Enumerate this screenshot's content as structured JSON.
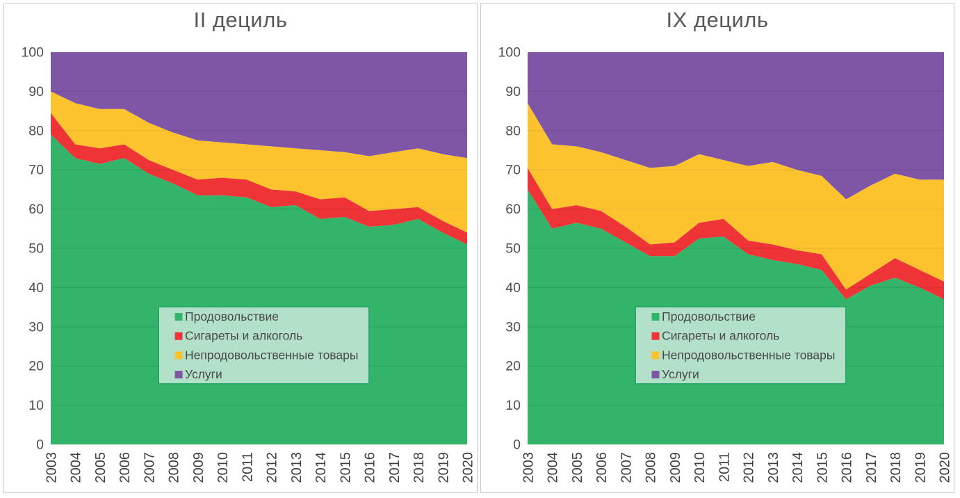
{
  "theme": {
    "background": "#ffffff",
    "panel_border": "#c9c9c9",
    "title_color": "#595959",
    "ytick_color": "#4f4f4f",
    "xtick_color": "#3f3f3f",
    "gridline_color": "rgba(0,0,0,0.10)",
    "legend_bg": "#b3e0c8",
    "legend_border": "#2aa868",
    "legend_text_color": "#4a4a4a"
  },
  "chart_data": [
    {
      "type": "area",
      "stacked": true,
      "title": "II дециль",
      "x": [
        "2003",
        "2004",
        "2005",
        "2006",
        "2007",
        "2008",
        "2009",
        "2010",
        "2011",
        "2012",
        "2013",
        "2014",
        "2015",
        "2016",
        "2017",
        "2018",
        "2019",
        "2020"
      ],
      "ylim": [
        0,
        100
      ],
      "yticks": [
        0,
        10,
        20,
        30,
        40,
        50,
        60,
        70,
        80,
        90,
        100
      ],
      "grid": true,
      "legend_position": "inside-bottom-left",
      "series": [
        {
          "key": "food",
          "name": "Продовольствие",
          "color": "#33b46a",
          "values": [
            79,
            73,
            71.5,
            73,
            69,
            66.5,
            63.5,
            63.5,
            63,
            60.5,
            61,
            57.5,
            58,
            55.5,
            56,
            57.5,
            54,
            51
          ]
        },
        {
          "key": "cigarettes-alcohol",
          "name": "Сигареты и алкоголь",
          "color": "#ee3436",
          "values": [
            5.5,
            3.5,
            4,
            3.5,
            3.5,
            3.5,
            4,
            4.5,
            4.5,
            4.5,
            3.5,
            5,
            5,
            4,
            4,
            3,
            3,
            3
          ]
        },
        {
          "key": "nonfood-goods",
          "name": "Непродовольственные товары",
          "color": "#fdc32e",
          "values": [
            5.5,
            10.5,
            10,
            9,
            9.5,
            9.5,
            10,
            9,
            9,
            11,
            11,
            12.5,
            11.5,
            14,
            14.5,
            15,
            17,
            19
          ]
        },
        {
          "key": "services",
          "name": "Услуги",
          "color": "#7e56a5",
          "values": [
            10,
            13,
            14.5,
            14.5,
            18,
            20.5,
            22.5,
            23,
            23.5,
            24,
            24.5,
            25,
            25.5,
            26.5,
            25.5,
            24.5,
            26,
            27
          ]
        }
      ]
    },
    {
      "type": "area",
      "stacked": true,
      "title": "IX дециль",
      "x": [
        "2003",
        "2004",
        "2005",
        "2006",
        "2007",
        "2008",
        "2009",
        "2010",
        "2011",
        "2012",
        "2013",
        "2014",
        "2015",
        "2016",
        "2017",
        "2018",
        "2019",
        "2020"
      ],
      "ylim": [
        0,
        100
      ],
      "yticks": [
        0,
        10,
        20,
        30,
        40,
        50,
        60,
        70,
        80,
        90,
        100
      ],
      "grid": true,
      "legend_position": "inside-bottom-left",
      "series": [
        {
          "key": "food",
          "name": "Продовольствие",
          "color": "#33b46a",
          "values": [
            65,
            55,
            56.5,
            55,
            51.5,
            48,
            48,
            52.5,
            53,
            48.5,
            47,
            46,
            44.5,
            37,
            40.5,
            42.5,
            40,
            37
          ]
        },
        {
          "key": "cigarettes-alcohol",
          "name": "Сигареты и алкоголь",
          "color": "#ee3436",
          "values": [
            5.5,
            5,
            4.5,
            4.5,
            4,
            3,
            3.5,
            4,
            4.5,
            3.5,
            4,
            3.5,
            4,
            2.5,
            3,
            5,
            4.5,
            4.5
          ]
        },
        {
          "key": "nonfood-goods",
          "name": "Непродовольственные товары",
          "color": "#fdc32e",
          "values": [
            16.5,
            16.5,
            15,
            15,
            17,
            19.5,
            19.5,
            17.5,
            15,
            19,
            21,
            20.5,
            20,
            23,
            22.5,
            21.5,
            23,
            26
          ]
        },
        {
          "key": "services",
          "name": "Услуги",
          "color": "#7e56a5",
          "values": [
            13,
            23.5,
            24,
            25.5,
            27.5,
            29.5,
            29,
            26,
            27.5,
            29,
            28,
            30,
            31.5,
            37.5,
            34,
            31,
            32.5,
            32.5
          ]
        }
      ]
    }
  ]
}
